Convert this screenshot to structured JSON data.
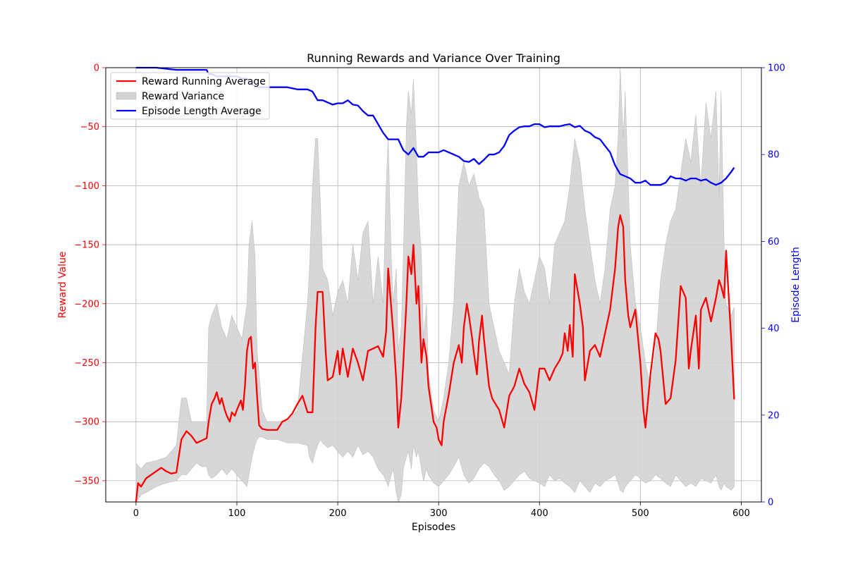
{
  "chart_data": {
    "type": "line",
    "title": "Running Rewards and Variance Over Training",
    "xlabel": "Episodes",
    "ylabel_left": "Reward Value",
    "ylabel_right": "Episode Length",
    "xlim": [
      -30,
      620
    ],
    "ylim_left": [
      -368,
      0
    ],
    "ylim_right": [
      0,
      100
    ],
    "x_ticks": [
      0,
      100,
      200,
      300,
      400,
      500,
      600
    ],
    "y_left_ticks": [
      0,
      -50,
      -100,
      -150,
      -200,
      -250,
      -300,
      -350
    ],
    "y_right_ticks": [
      0,
      20,
      40,
      60,
      80,
      100
    ],
    "grid": true,
    "legend_position": "top-left",
    "colors": {
      "reward": "#ff0000",
      "variance": "#d3d3d3",
      "variance_edge": "#bfbfbf",
      "length": "#0000ff",
      "left_axis": "#ff0000",
      "right_axis": "#0000ff"
    },
    "legend": [
      {
        "label": "Reward Running Average",
        "kind": "line",
        "color": "#ff0000"
      },
      {
        "label": "Reward Variance",
        "kind": "patch",
        "color": "#d3d3d3"
      },
      {
        "label": "Episode Length Average",
        "kind": "line",
        "color": "#0000ff"
      }
    ],
    "series": [
      {
        "name": "Reward Running Average",
        "axis": "left",
        "x": [
          0,
          2,
          5,
          10,
          15,
          20,
          25,
          30,
          35,
          40,
          45,
          50,
          55,
          60,
          65,
          70,
          72,
          75,
          78,
          80,
          83,
          85,
          88,
          90,
          93,
          95,
          98,
          100,
          104,
          106,
          108,
          110,
          112,
          114,
          116,
          118,
          120,
          122,
          125,
          130,
          135,
          140,
          145,
          150,
          155,
          160,
          165,
          170,
          175,
          178,
          180,
          185,
          188,
          190,
          195,
          200,
          202,
          205,
          210,
          215,
          220,
          225,
          230,
          235,
          240,
          245,
          248,
          250,
          255,
          258,
          260,
          263,
          265,
          268,
          270,
          273,
          275,
          278,
          280,
          283,
          285,
          288,
          290,
          295,
          298,
          300,
          303,
          305,
          310,
          315,
          320,
          323,
          325,
          328,
          330,
          333,
          335,
          338,
          340,
          343,
          345,
          350,
          353,
          355,
          360,
          365,
          370,
          375,
          380,
          385,
          390,
          395,
          400,
          405,
          410,
          415,
          420,
          423,
          425,
          428,
          430,
          433,
          435,
          440,
          443,
          445,
          450,
          455,
          460,
          465,
          470,
          475,
          478,
          480,
          483,
          485,
          488,
          490,
          495,
          500,
          503,
          505,
          510,
          515,
          518,
          520,
          525,
          530,
          535,
          540,
          545,
          548,
          550,
          555,
          558,
          560,
          565,
          570,
          575,
          578,
          580,
          583,
          585,
          590,
          593
        ],
        "values": [
          -368,
          -352,
          -355,
          -348,
          -345,
          -342,
          -339,
          -342,
          -344,
          -343,
          -315,
          -308,
          -312,
          -318,
          -316,
          -314,
          -300,
          -285,
          -280,
          -275,
          -285,
          -280,
          -290,
          -295,
          -300,
          -292,
          -295,
          -290,
          -282,
          -290,
          -270,
          -240,
          -230,
          -228,
          -255,
          -250,
          -278,
          -303,
          -306,
          -307,
          -307,
          -307,
          -300,
          -298,
          -293,
          -285,
          -278,
          -292,
          -292,
          -220,
          -190,
          -190,
          -240,
          -265,
          -262,
          -240,
          -260,
          -238,
          -262,
          -238,
          -250,
          -265,
          -240,
          -238,
          -236,
          -245,
          -223,
          -170,
          -225,
          -265,
          -305,
          -280,
          -250,
          -200,
          -160,
          -175,
          -150,
          -200,
          -185,
          -250,
          -230,
          -245,
          -270,
          -300,
          -305,
          -315,
          -320,
          -300,
          -277,
          -250,
          -235,
          -250,
          -220,
          -200,
          -210,
          -228,
          -242,
          -260,
          -232,
          -210,
          -230,
          -270,
          -280,
          -283,
          -290,
          -305,
          -278,
          -270,
          -255,
          -268,
          -275,
          -290,
          -255,
          -255,
          -265,
          -255,
          -248,
          -242,
          -225,
          -240,
          -218,
          -245,
          -175,
          -200,
          -220,
          -265,
          -240,
          -235,
          -245,
          -225,
          -205,
          -170,
          -135,
          -125,
          -135,
          -180,
          -210,
          -220,
          -205,
          -250,
          -290,
          -305,
          -260,
          -225,
          -230,
          -240,
          -285,
          -280,
          -248,
          -185,
          -195,
          -255,
          -240,
          -210,
          -255,
          -205,
          -195,
          -215,
          -195,
          -180,
          -185,
          -195,
          -155,
          -230,
          -281
        ],
        "color": "#ff0000"
      },
      {
        "name": "Reward Variance",
        "axis": "left",
        "kind": "band",
        "x": [
          0,
          5,
          10,
          20,
          30,
          40,
          45,
          50,
          55,
          60,
          65,
          70,
          72,
          75,
          80,
          85,
          90,
          95,
          100,
          105,
          110,
          112,
          115,
          118,
          120,
          122,
          125,
          130,
          140,
          150,
          160,
          170,
          172,
          175,
          178,
          180,
          183,
          185,
          190,
          195,
          200,
          205,
          210,
          215,
          220,
          225,
          230,
          235,
          240,
          245,
          248,
          250,
          253,
          255,
          258,
          260,
          263,
          265,
          268,
          270,
          273,
          275,
          278,
          280,
          283,
          285,
          288,
          290,
          295,
          300,
          305,
          310,
          315,
          320,
          325,
          330,
          335,
          340,
          345,
          350,
          355,
          360,
          365,
          370,
          375,
          380,
          385,
          390,
          395,
          400,
          405,
          410,
          415,
          420,
          425,
          430,
          435,
          440,
          445,
          450,
          455,
          460,
          465,
          470,
          475,
          478,
          480,
          483,
          485,
          490,
          495,
          500,
          505,
          510,
          515,
          520,
          525,
          530,
          535,
          540,
          545,
          550,
          555,
          560,
          565,
          570,
          575,
          578,
          580,
          583,
          585,
          590,
          593
        ],
        "upper": [
          -335,
          -340,
          -335,
          -333,
          -330,
          -320,
          -280,
          -280,
          -300,
          -300,
          -300,
          -300,
          -220,
          -210,
          -200,
          -220,
          -230,
          -210,
          -220,
          -230,
          -200,
          -150,
          -130,
          -160,
          -240,
          -260,
          -290,
          -300,
          -300,
          -300,
          -290,
          -200,
          -170,
          -100,
          -60,
          -60,
          -120,
          -170,
          -180,
          -210,
          -190,
          -180,
          -200,
          -150,
          -180,
          -140,
          -130,
          -200,
          -160,
          -200,
          -100,
          -60,
          -160,
          -200,
          -170,
          -240,
          -220,
          -160,
          -50,
          -20,
          -40,
          -10,
          -70,
          -120,
          -160,
          -230,
          -200,
          -260,
          -290,
          -300,
          -280,
          -250,
          -200,
          -100,
          -80,
          -100,
          -90,
          -110,
          -120,
          -200,
          -220,
          -240,
          -250,
          -260,
          -200,
          -170,
          -190,
          -200,
          -180,
          -160,
          -170,
          -200,
          -150,
          -140,
          -130,
          -100,
          -60,
          -80,
          -120,
          -150,
          -180,
          -200,
          -170,
          -120,
          -100,
          -60,
          0,
          -60,
          -20,
          -150,
          -200,
          -220,
          -250,
          -270,
          -240,
          -180,
          -150,
          -130,
          -120,
          -90,
          -60,
          -80,
          -40,
          -100,
          -30,
          -60,
          -20,
          -110,
          -20,
          -150,
          -200,
          -210,
          -203
        ],
        "lower": [
          -368,
          -362,
          -360,
          -355,
          -352,
          -350,
          -345,
          -345,
          -340,
          -335,
          -338,
          -338,
          -345,
          -348,
          -345,
          -340,
          -345,
          -340,
          -345,
          -350,
          -355,
          -345,
          -330,
          -320,
          -315,
          -313,
          -313,
          -315,
          -315,
          -318,
          -318,
          -320,
          -330,
          -335,
          -325,
          -320,
          -315,
          -318,
          -322,
          -320,
          -325,
          -330,
          -325,
          -330,
          -320,
          -328,
          -325,
          -330,
          -340,
          -345,
          -350,
          -355,
          -345,
          -340,
          -360,
          -368,
          -362,
          -340,
          -330,
          -325,
          -340,
          -320,
          -330,
          -325,
          -340,
          -350,
          -340,
          -345,
          -352,
          -355,
          -350,
          -345,
          -338,
          -330,
          -345,
          -352,
          -348,
          -340,
          -335,
          -338,
          -345,
          -350,
          -358,
          -355,
          -350,
          -345,
          -342,
          -348,
          -350,
          -352,
          -355,
          -345,
          -350,
          -348,
          -352,
          -355,
          -360,
          -350,
          -355,
          -360,
          -352,
          -355,
          -350,
          -348,
          -345,
          -352,
          -358,
          -360,
          -355,
          -350,
          -345,
          -348,
          -352,
          -350,
          -345,
          -348,
          -352,
          -355,
          -345,
          -350,
          -355,
          -352,
          -355,
          -348,
          -350,
          -352,
          -345,
          -355,
          -358,
          -352,
          -355,
          -358,
          -355
        ],
        "color": "#d3d3d3"
      },
      {
        "name": "Episode Length Average",
        "axis": "right",
        "x": [
          0,
          20,
          40,
          45,
          60,
          70,
          72,
          75,
          80,
          85,
          90,
          95,
          100,
          105,
          110,
          115,
          120,
          125,
          130,
          140,
          150,
          160,
          170,
          175,
          180,
          185,
          190,
          195,
          200,
          205,
          210,
          215,
          220,
          225,
          230,
          235,
          240,
          245,
          250,
          255,
          260,
          265,
          270,
          275,
          280,
          285,
          290,
          300,
          305,
          310,
          315,
          320,
          325,
          330,
          335,
          340,
          345,
          350,
          355,
          360,
          365,
          370,
          375,
          380,
          385,
          390,
          395,
          400,
          405,
          410,
          415,
          420,
          425,
          430,
          435,
          440,
          445,
          450,
          455,
          460,
          465,
          470,
          475,
          480,
          485,
          490,
          495,
          500,
          505,
          510,
          515,
          520,
          525,
          530,
          535,
          540,
          545,
          550,
          555,
          560,
          565,
          570,
          575,
          580,
          585,
          590,
          593
        ],
        "values": [
          100,
          100,
          99.5,
          99.5,
          99.5,
          99.5,
          98.5,
          98.5,
          98,
          98,
          98,
          98,
          98,
          97.5,
          97.5,
          96,
          95.5,
          95.5,
          95.5,
          95.5,
          95.5,
          95,
          95,
          94.5,
          92.5,
          92.5,
          92,
          91.5,
          91.8,
          91.8,
          92.5,
          91.5,
          91.3,
          90,
          89,
          89,
          87,
          85,
          83.5,
          83.5,
          83.5,
          81,
          80,
          81.5,
          79.5,
          79.5,
          80.5,
          80.5,
          81,
          80.5,
          80,
          79.5,
          78.5,
          78.3,
          79,
          77.8,
          78.8,
          80,
          80,
          80.5,
          82,
          84.5,
          85.5,
          86.3,
          86.5,
          86.5,
          87,
          87,
          86.3,
          86.5,
          86.5,
          86.5,
          86.8,
          87,
          86.3,
          86.6,
          85.5,
          85,
          84,
          83.5,
          82,
          80.5,
          77.5,
          75.5,
          75,
          74.5,
          73.5,
          73.5,
          74,
          73,
          73,
          73,
          73.5,
          75,
          74.5,
          74.5,
          74,
          74.5,
          74.5,
          74,
          74.3,
          73.5,
          73,
          73.5,
          74.5,
          76,
          77
        ],
        "color": "#0000ff"
      }
    ]
  }
}
